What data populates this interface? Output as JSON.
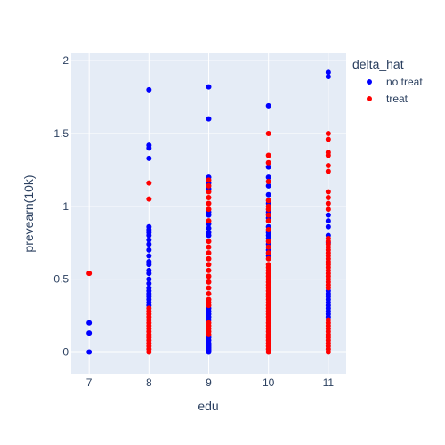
{
  "colors": {
    "plot_bg": "#e5ecf6",
    "grid": "#ffffff",
    "text": "#2a3f5f",
    "no_treat": "#0000ff",
    "treat": "#ff0000"
  },
  "chart_data": {
    "type": "scatter",
    "title": "",
    "xlabel": "edu",
    "ylabel": "prevearn(10k)",
    "xlim": [
      6.7,
      11.3
    ],
    "ylim": [
      -0.15,
      2.05
    ],
    "x_ticks": [
      7,
      8,
      9,
      10,
      11
    ],
    "x_tick_labels": [
      "7",
      "8",
      "9",
      "10",
      "11"
    ],
    "y_ticks": [
      0,
      0.5,
      1,
      1.5,
      2
    ],
    "y_tick_labels": [
      "0",
      "0.5",
      "1",
      "1.5",
      "2"
    ],
    "grid": true,
    "legend": {
      "title": "delta_hat",
      "placement": "top-right-outside",
      "entries": [
        "no treat",
        "treat"
      ]
    },
    "series": [
      {
        "name": "no treat",
        "color": "#0000ff",
        "points": [
          [
            7,
            0.2
          ],
          [
            7,
            0.13
          ],
          [
            7,
            0.0
          ],
          [
            8,
            1.8
          ],
          [
            8,
            1.42
          ],
          [
            8,
            1.4
          ],
          [
            8,
            1.33
          ],
          [
            8,
            0.86
          ],
          [
            8,
            0.84
          ],
          [
            8,
            0.82
          ],
          [
            8,
            0.8
          ],
          [
            8,
            0.77
          ],
          [
            8,
            0.74
          ],
          [
            8,
            0.7
          ],
          [
            8,
            0.66
          ],
          [
            8,
            0.62
          ],
          [
            8,
            0.6
          ],
          [
            8,
            0.56
          ],
          [
            8,
            0.54
          ],
          [
            8,
            0.5
          ],
          [
            8,
            0.47
          ],
          [
            8,
            0.44
          ],
          [
            8,
            0.42
          ],
          [
            8,
            0.4
          ],
          [
            8,
            0.38
          ],
          [
            8,
            0.36
          ],
          [
            8,
            0.34
          ],
          [
            8,
            0.32
          ],
          [
            9,
            1.82
          ],
          [
            9,
            1.6
          ],
          [
            9,
            1.2
          ],
          [
            9,
            1.16
          ],
          [
            9,
            1.12
          ],
          [
            9,
            0.96
          ],
          [
            9,
            0.94
          ],
          [
            9,
            0.88
          ],
          [
            9,
            0.85
          ],
          [
            9,
            0.82
          ],
          [
            9,
            0.8
          ],
          [
            9,
            0.3
          ],
          [
            9,
            0.28
          ],
          [
            9,
            0.26
          ],
          [
            9,
            0.24
          ],
          [
            9,
            0.22
          ],
          [
            9,
            0.1
          ],
          [
            9,
            0.08
          ],
          [
            9,
            0.06
          ],
          [
            9,
            0.05
          ],
          [
            9,
            0.04
          ],
          [
            9,
            0.03
          ],
          [
            9,
            0.02
          ],
          [
            9,
            0.01
          ],
          [
            9,
            0.0
          ],
          [
            10,
            1.69
          ],
          [
            10,
            1.27
          ],
          [
            10,
            1.2
          ],
          [
            10,
            1.14
          ],
          [
            10,
            1.08
          ],
          [
            10,
            1.02
          ],
          [
            10,
            0.96
          ],
          [
            10,
            0.92
          ],
          [
            10,
            0.86
          ],
          [
            10,
            0.82
          ],
          [
            10,
            0.8
          ],
          [
            10,
            0.78
          ],
          [
            10,
            0.74
          ],
          [
            10,
            0.7
          ],
          [
            10,
            0.66
          ],
          [
            11,
            1.92
          ],
          [
            11,
            1.89
          ],
          [
            11,
            0.94
          ],
          [
            11,
            0.9
          ],
          [
            11,
            0.86
          ],
          [
            11,
            0.8
          ],
          [
            11,
            0.75
          ],
          [
            11,
            0.42
          ],
          [
            11,
            0.4
          ],
          [
            11,
            0.38
          ],
          [
            11,
            0.36
          ],
          [
            11,
            0.34
          ],
          [
            11,
            0.32
          ],
          [
            11,
            0.3
          ],
          [
            11,
            0.28
          ],
          [
            11,
            0.26
          ],
          [
            11,
            0.24
          ]
        ]
      },
      {
        "name": "treat",
        "color": "#ff0000",
        "points": [
          [
            7,
            0.54
          ],
          [
            8,
            1.16
          ],
          [
            8,
            1.05
          ],
          [
            8,
            0.3
          ],
          [
            8,
            0.28
          ],
          [
            8,
            0.26
          ],
          [
            8,
            0.24
          ],
          [
            8,
            0.22
          ],
          [
            8,
            0.2
          ],
          [
            8,
            0.18
          ],
          [
            8,
            0.16
          ],
          [
            8,
            0.14
          ],
          [
            8,
            0.12
          ],
          [
            8,
            0.1
          ],
          [
            8,
            0.08
          ],
          [
            8,
            0.06
          ],
          [
            8,
            0.04
          ],
          [
            8,
            0.02
          ],
          [
            8,
            0.0
          ],
          [
            9,
            1.18
          ],
          [
            9,
            1.14
          ],
          [
            9,
            1.1
          ],
          [
            9,
            1.06
          ],
          [
            9,
            1.02
          ],
          [
            9,
            0.98
          ],
          [
            9,
            0.9
          ],
          [
            9,
            0.76
          ],
          [
            9,
            0.72
          ],
          [
            9,
            0.68
          ],
          [
            9,
            0.64
          ],
          [
            9,
            0.6
          ],
          [
            9,
            0.56
          ],
          [
            9,
            0.52
          ],
          [
            9,
            0.48
          ],
          [
            9,
            0.44
          ],
          [
            9,
            0.4
          ],
          [
            9,
            0.36
          ],
          [
            9,
            0.34
          ],
          [
            9,
            0.32
          ],
          [
            9,
            0.2
          ],
          [
            9,
            0.18
          ],
          [
            9,
            0.16
          ],
          [
            9,
            0.14
          ],
          [
            9,
            0.12
          ],
          [
            10,
            1.5
          ],
          [
            10,
            1.35
          ],
          [
            10,
            1.3
          ],
          [
            10,
            1.17
          ],
          [
            10,
            1.04
          ],
          [
            10,
            1.0
          ],
          [
            10,
            0.98
          ],
          [
            10,
            0.94
          ],
          [
            10,
            0.9
          ],
          [
            10,
            0.84
          ],
          [
            10,
            0.76
          ],
          [
            10,
            0.72
          ],
          [
            10,
            0.68
          ],
          [
            10,
            0.64
          ],
          [
            10,
            0.6
          ],
          [
            10,
            0.58
          ],
          [
            10,
            0.56
          ],
          [
            10,
            0.54
          ],
          [
            10,
            0.52
          ],
          [
            10,
            0.5
          ],
          [
            10,
            0.48
          ],
          [
            10,
            0.46
          ],
          [
            10,
            0.44
          ],
          [
            10,
            0.42
          ],
          [
            10,
            0.4
          ],
          [
            10,
            0.38
          ],
          [
            10,
            0.36
          ],
          [
            10,
            0.34
          ],
          [
            10,
            0.32
          ],
          [
            10,
            0.3
          ],
          [
            10,
            0.28
          ],
          [
            10,
            0.26
          ],
          [
            10,
            0.24
          ],
          [
            10,
            0.22
          ],
          [
            10,
            0.2
          ],
          [
            10,
            0.18
          ],
          [
            10,
            0.16
          ],
          [
            10,
            0.14
          ],
          [
            10,
            0.12
          ],
          [
            10,
            0.1
          ],
          [
            10,
            0.08
          ],
          [
            10,
            0.06
          ],
          [
            10,
            0.04
          ],
          [
            10,
            0.02
          ],
          [
            10,
            0.0
          ],
          [
            11,
            1.5
          ],
          [
            11,
            1.46
          ],
          [
            11,
            1.37
          ],
          [
            11,
            1.35
          ],
          [
            11,
            1.28
          ],
          [
            11,
            1.24
          ],
          [
            11,
            1.1
          ],
          [
            11,
            1.06
          ],
          [
            11,
            1.02
          ],
          [
            11,
            0.98
          ],
          [
            11,
            0.78
          ],
          [
            11,
            0.76
          ],
          [
            11,
            0.74
          ],
          [
            11,
            0.72
          ],
          [
            11,
            0.7
          ],
          [
            11,
            0.68
          ],
          [
            11,
            0.66
          ],
          [
            11,
            0.64
          ],
          [
            11,
            0.62
          ],
          [
            11,
            0.6
          ],
          [
            11,
            0.58
          ],
          [
            11,
            0.56
          ],
          [
            11,
            0.54
          ],
          [
            11,
            0.52
          ],
          [
            11,
            0.5
          ],
          [
            11,
            0.48
          ],
          [
            11,
            0.46
          ],
          [
            11,
            0.44
          ],
          [
            11,
            0.22
          ],
          [
            11,
            0.2
          ],
          [
            11,
            0.18
          ],
          [
            11,
            0.16
          ],
          [
            11,
            0.14
          ],
          [
            11,
            0.12
          ],
          [
            11,
            0.1
          ],
          [
            11,
            0.08
          ],
          [
            11,
            0.06
          ],
          [
            11,
            0.04
          ],
          [
            11,
            0.02
          ],
          [
            11,
            0.0
          ]
        ]
      }
    ]
  }
}
